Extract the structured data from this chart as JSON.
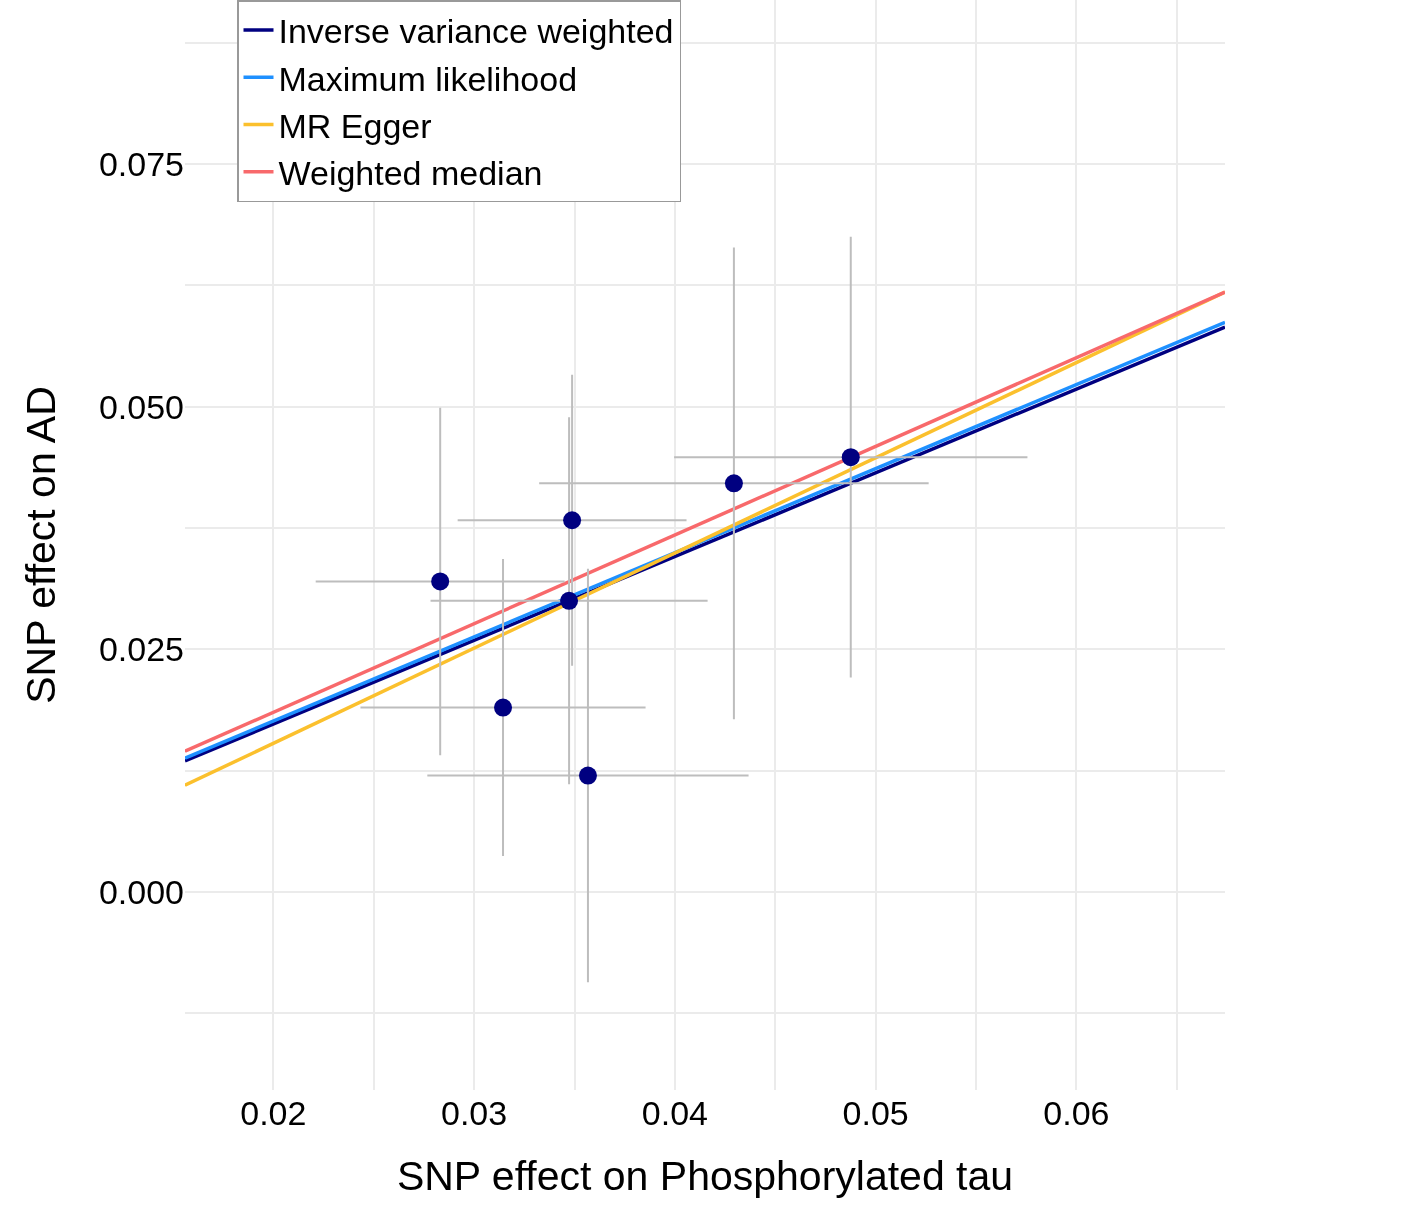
{
  "chart_data": {
    "type": "scatter",
    "xlabel": "SNP effect on Phosphorylated tau",
    "ylabel": "SNP effect on AD",
    "xlim": [
      0.0156,
      0.0674
    ],
    "ylim": [
      -0.0204,
      0.0919
    ],
    "xticks": [
      0.02,
      {
        "value": 0.025,
        "label": null
      },
      0.03,
      {
        "value": 0.035,
        "label": null
      },
      0.04,
      {
        "value": 0.045,
        "label": null
      },
      0.05,
      {
        "value": 0.055,
        "label": null
      },
      0.06,
      {
        "value": 0.065,
        "label": null
      }
    ],
    "yticks": [
      {
        "value": -0.0125,
        "label": null
      },
      "0.000",
      {
        "value": 0.0125,
        "label": null
      },
      0.025,
      {
        "value": 0.0375,
        "label": null
      },
      "0.050",
      {
        "value": 0.0625,
        "label": null
      },
      0.075,
      {
        "value": 0.0875,
        "label": null
      }
    ],
    "grid": true,
    "legend": "top left",
    "series": [
      {
        "marker": "circle",
        "color": "#000080",
        "x": [
          0.02831,
          0.03144,
          0.03488,
          0.03473,
          0.03567,
          0.04294,
          0.04876
        ],
        "values": [
          0.032,
          0.019,
          0.0383,
          0.03,
          0.012,
          0.0421,
          0.0448
        ],
        "errors": [
          0.0179,
          0.0153,
          0.015,
          0.0189,
          0.0213,
          0.0243,
          0.0227
        ],
        "xerrors": [
          0.0062,
          0.0071,
          0.0057,
          0.0069,
          0.008,
          0.0097,
          0.0088
        ]
      },
      {
        "type": "line",
        "name": "Inverse variance weighted",
        "color": "#000080",
        "x": [
          0.0156,
          0.0674
        ],
        "values": [
          0.0135,
          0.0582
        ]
      },
      {
        "type": "line",
        "name": "Maximum likelihood",
        "color": "#1e90ff",
        "x": [
          0.0156,
          0.0674
        ],
        "values": [
          0.0138,
          0.0587
        ]
      },
      {
        "type": "line",
        "name": "MR Egger",
        "color": "#fbc02d",
        "x": [
          0.0156,
          0.0674
        ],
        "values": [
          0.011,
          0.0618
        ]
      },
      {
        "type": "line",
        "name": "Weighted median",
        "color": "#f8696b",
        "x": [
          0.0156,
          0.0674
        ],
        "values": [
          0.0145,
          0.0618
        ]
      }
    ]
  }
}
